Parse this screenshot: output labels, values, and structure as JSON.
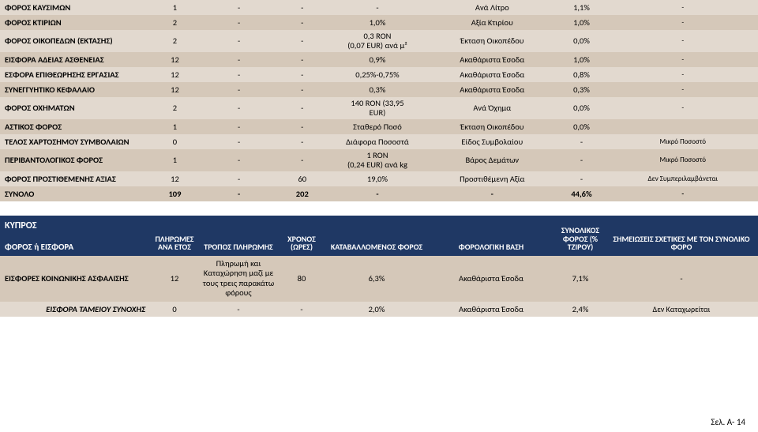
{
  "colors": {
    "row_light": "#e2d9cf",
    "row_dark": "#d5c8b9",
    "header_bar": "#1f3864",
    "header_text": "#ffffff",
    "background": "#ffffff",
    "text": "#000000"
  },
  "rows": [
    {
      "shade": "light",
      "tall": false,
      "c0": "ΦΟΡΟΣ ΚΑΥΣΙΜΩΝ",
      "c1": "1",
      "c2": "-",
      "c3": "-",
      "c4": "-",
      "c5": "Ανά Λίτρο",
      "c6": "1,1%",
      "c7": "-"
    },
    {
      "shade": "dark",
      "tall": false,
      "c0": "ΦΟΡΟΣ ΚΤΙΡΙΩΝ",
      "c1": "2",
      "c2": "-",
      "c3": "-",
      "c4": "1,0%",
      "c5": "Αξία Κτιρίου",
      "c6": "1,0%",
      "c7": "-"
    },
    {
      "shade": "light",
      "tall": true,
      "c0": "ΦΟΡΟΣ ΟΙΚΟΠΕΔΩΝ (ΕΚΤΑΣΗΣ)",
      "c1": "2",
      "c2": "-",
      "c3": "-",
      "c4": "0,3 RON\n(0,07 EUR) ανά μ²",
      "c5": "Έκταση Οικοπέδου",
      "c6": "0,0%",
      "c7": "-"
    },
    {
      "shade": "dark",
      "tall": false,
      "c0": "ΕΙΣΦΟΡΑ ΑΔΕΙΑΣ ΑΣΘΕΝΕΙΑΣ",
      "c1": "12",
      "c2": "-",
      "c3": "-",
      "c4": "0,9%",
      "c5": "Ακαθάριστα Έσοδα",
      "c6": "1,0%",
      "c7": "-"
    },
    {
      "shade": "light",
      "tall": false,
      "c0": "ΕΣΦΟΡΑ ΕΠΙΘΕΩΡΗΣΗΣ ΕΡΓΑΣΙΑΣ",
      "c1": "12",
      "c2": "-",
      "c3": "-",
      "c4": "0,25%-0,75%",
      "c5": "Ακαθάριστα Έσοδα",
      "c6": "0,8%",
      "c7": "-"
    },
    {
      "shade": "dark",
      "tall": false,
      "c0": "ΣΥΝΕΓΓΥΗΤΙΚΟ ΚΕΦΑΛΑΙΟ",
      "c1": "12",
      "c2": "-",
      "c3": "-",
      "c4": "0,3%",
      "c5": "Ακαθάριστα Έσοδα",
      "c6": "0,3%",
      "c7": "-"
    },
    {
      "shade": "light",
      "tall": true,
      "c0": "ΦΟΡΟΣ ΟΧΗΜΑΤΩΝ",
      "c1": "2",
      "c2": "-",
      "c3": "-",
      "c4": "140 RON (33,95\nEUR)",
      "c5": "Ανά Όχημα",
      "c6": "0,0%",
      "c7": "-"
    },
    {
      "shade": "dark",
      "tall": false,
      "c0": "ΑΣΤΙΚΟΣ ΦΟΡΟΣ",
      "c1": "1",
      "c2": "-",
      "c3": "-",
      "c4": "Σταθερό Ποσό",
      "c5": "Έκταση Οικοπέδου",
      "c6": "0,0%",
      "c7": ""
    },
    {
      "shade": "light",
      "tall": false,
      "c0": "ΤΕΛΟΣ ΧΑΡΤΟΣΗΜΟΥ ΣΥΜΒΟΛΑΙΩΝ",
      "c1": "0",
      "c2": "-",
      "c3": "-",
      "c4": "Διάφορα Ποσοστά",
      "c5": "Είδος Συμβολαίου",
      "c6": "-",
      "c7": "Μικρό Ποσοστό"
    },
    {
      "shade": "dark",
      "tall": true,
      "c0": "ΠΕΡΙΒΑΝΤΟΛΟΓΙΚΟΣ ΦΟΡΟΣ",
      "c1": "1",
      "c2": "-",
      "c3": "-",
      "c4": "1 RON\n(0,24 EUR) ανά kg",
      "c5": "Βάρος Δεμάτων",
      "c6": "-",
      "c7": "Μικρό Ποσοστό"
    },
    {
      "shade": "light",
      "tall": true,
      "c0": "ΦΟΡΟΣ ΠΡΟΣΤΙΘΕΜΕΝΗΣ ΑΞΙΑΣ",
      "c1": "12",
      "c2": "-",
      "c3": "60",
      "c4": "19,0%",
      "c5": "Προστιθέμενη Αξία",
      "c6": "-",
      "c7": "Δεν Συμπεριλαμβάνεται"
    }
  ],
  "total": {
    "c0": "ΣΥΝΟΛΟ",
    "c1": "109",
    "c2": "-",
    "c3": "202",
    "c4": "-",
    "c5": "-",
    "c6": "44,6%",
    "c7": "-"
  },
  "header2": {
    "country": "ΚΥΠΡΟΣ",
    "h0": "ΦΟΡΟΣ ή ΕΙΣΦΟΡΑ",
    "h1": "ΠΛΗΡΩΜΕΣ ΑΝΑ ΕΤΟΣ",
    "h2": "ΤΡΟΠΟΣ ΠΛΗΡΩΜΗΣ",
    "h3": "ΧΡΟΝΟΣ (ΩΡΕΣ)",
    "h4": "ΚΑΤΑΒΑΛΛΟΜΕΝΟΣ ΦΟΡΟΣ",
    "h5": "ΦΟΡΟΛΟΓΙΚΗ ΒΑΣΗ",
    "h6": "ΣΥΝΟΛΙΚΟΣ ΦΟΡΟΣ (% ΤΖΙΡΟΥ)",
    "h7": "ΣΗΜΕΙΩΣΕΙΣ ΣΧΕΤΙΚΕΣ ΜΕ ΤΟΝ ΣΥΝΟΛΙΚΟ ΦΟΡΟ"
  },
  "social": {
    "c0": "ΕΙΣΦΟΡΕΣ ΚΟΙΝΩΝΙΚΗΣ ΑΣΦΑΛΙΣΗΣ",
    "c1": "12",
    "c2": "Πληρωμή και Καταχώρηση μαζί με τους τρεις παρακάτω φόρους",
    "c3": "80",
    "c4": "6,3%",
    "c5": "Ακαθάριστα Έσοδα",
    "c6": "7,1%",
    "c7": "-"
  },
  "sub": {
    "c0": "ΕΙΣΦΟΡΑ ΤΑΜΕΙΟΥ ΣΥΝΟΧΗΣ",
    "c1": "0",
    "c2": "-",
    "c3": "-",
    "c4": "2,0%",
    "c5": "Ακαθάριστα Έσοδα",
    "c6": "2,4%",
    "c7": "Δεν Καταχωρείται"
  },
  "footer": "Σελ. Α- 14"
}
